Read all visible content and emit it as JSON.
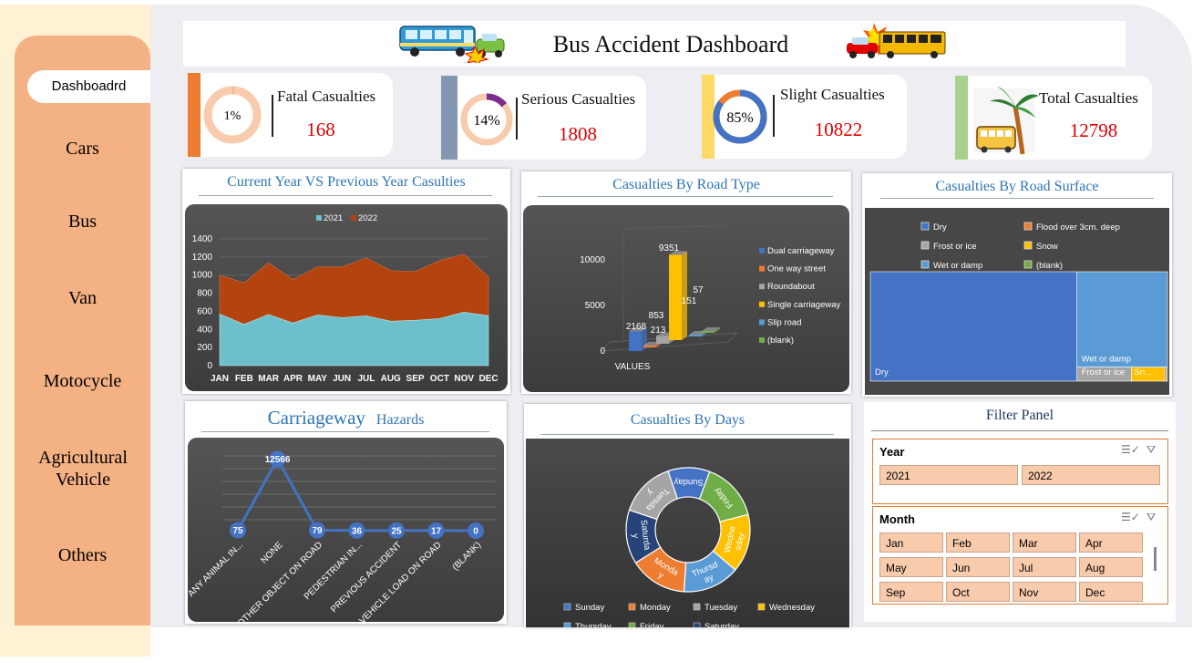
{
  "sidebar": {
    "active": "Dashboadrd",
    "items": [
      "Cars",
      "Bus",
      "Van",
      "Motocycle",
      "Agricultural Vehicle",
      "Others"
    ]
  },
  "title": "Bus Accident Dashboard",
  "kpis": [
    {
      "label": "Fatal Casualties",
      "value": "168",
      "percent": "1%",
      "strip_color": "#ed7d31",
      "ring_color": "#f4b183",
      "fraction": 0.01
    },
    {
      "label": "Serious Casualties",
      "value": "1808",
      "percent": "14%",
      "strip_color": "#8497b0",
      "ring_color": "#7b2c8e",
      "fraction": 0.14
    },
    {
      "label": "Slight Casualties",
      "value": "10822",
      "percent": "85%",
      "strip_color": "#ffd966",
      "ring_color": "#4472c4",
      "fraction": 0.85
    },
    {
      "label": "Total Casualties",
      "value": "12798",
      "strip_color": "#a9d18e"
    }
  ],
  "charts": {
    "year": {
      "title": "Current Year VS Previous Year Casulties"
    },
    "road_type": {
      "title": "Casualties By Road Type"
    },
    "surface": {
      "title": "Casualties By Road Surface"
    },
    "hazards": {
      "title": "Carriageway",
      "title2": "Hazards"
    },
    "days": {
      "title": "Casualties By Days"
    }
  },
  "chart_data": [
    {
      "type": "area",
      "title": "Current Year VS Previous Year Casulties",
      "categories": [
        "JAN",
        "FEB",
        "MAR",
        "APR",
        "MAY",
        "JUN",
        "JUL",
        "AUG",
        "SEP",
        "OCT",
        "NOV",
        "DEC"
      ],
      "series": [
        {
          "name": "2021",
          "values": [
            570,
            455,
            565,
            470,
            560,
            530,
            550,
            490,
            500,
            520,
            590,
            550
          ],
          "color": "#6dc0cb"
        },
        {
          "name": "2022",
          "values": [
            430,
            460,
            570,
            480,
            530,
            560,
            640,
            560,
            540,
            640,
            640,
            430
          ],
          "color": "#b4440f"
        }
      ],
      "stacked": true,
      "ylim": [
        0,
        1400
      ],
      "yticks": [
        0,
        200,
        400,
        600,
        800,
        1000,
        1200,
        1400
      ],
      "legend": "top",
      "grid": true
    },
    {
      "type": "bar",
      "title": "Casualties By Road Type",
      "categories": [
        "VALUES"
      ],
      "series": [
        {
          "name": "Dual carriageway",
          "value": 2168,
          "color": "#4472c4"
        },
        {
          "name": "One way street",
          "value": 213,
          "color": "#ed7d31"
        },
        {
          "name": "Roundabout",
          "value": 853,
          "color": "#a5a5a5"
        },
        {
          "name": "Single carriageway",
          "value": 9351,
          "color": "#ffc000"
        },
        {
          "name": "Slip road",
          "value": 151,
          "color": "#5b9bd5"
        },
        {
          "name": "(blank)",
          "value": 57,
          "color": "#70ad47"
        }
      ],
      "yticks": [
        0,
        5000,
        10000
      ],
      "ylim": [
        0,
        12000
      ],
      "legend": "right"
    },
    {
      "type": "treemap",
      "title": "Casualties By Road Surface",
      "series": [
        {
          "name": "Dry",
          "value": 8900,
          "color": "#4472c4"
        },
        {
          "name": "Wet or damp",
          "value": 3400,
          "color": "#5b9bd5"
        },
        {
          "name": "Frost or ice",
          "value": 300,
          "color": "#a5a5a5"
        },
        {
          "name": "Snow",
          "value": 180,
          "color": "#ffc000"
        },
        {
          "name": "Flood over 3cm. deep",
          "value": 10,
          "color": "#ed7d31"
        },
        {
          "name": "(blank)",
          "value": 8,
          "color": "#70ad47"
        }
      ],
      "labels": {
        "dry": "Dry",
        "wet": "Wet or damp",
        "frost": "Frost or ice",
        "snow": "Sn..."
      },
      "legend": "top"
    },
    {
      "type": "line",
      "title": "Carriageway  Hazards",
      "categories": [
        "ANY ANIMAL IN...",
        "NONE",
        "OTHER OBJECT ON ROAD",
        "PEDESTRIAN IN...",
        "PREVIOUS ACCIDENT",
        "VEHICLE LOAD ON ROAD",
        "(BLANK)"
      ],
      "values": [
        75,
        12566,
        79,
        36,
        25,
        17,
        0
      ],
      "ylim": [
        0,
        14000
      ]
    },
    {
      "type": "pie",
      "title": "Casualties By Days",
      "donut": true,
      "slices": [
        {
          "name": "Sunday",
          "label": "Sunday",
          "value": 1370,
          "color": "#4472c4"
        },
        {
          "name": "Friday",
          "label": "Friday",
          "value": 1930,
          "color": "#70ad47"
        },
        {
          "name": "Wednesday",
          "label": "Wedne sday",
          "value": 1900,
          "color": "#ffc000"
        },
        {
          "name": "Thursday",
          "label": "Thursd ay",
          "value": 1860,
          "color": "#5b9bd5"
        },
        {
          "name": "Monday",
          "label": "Monda y",
          "value": 1880,
          "color": "#ed7d31"
        },
        {
          "name": "Saturday",
          "label": "Saturda y",
          "value": 1770,
          "color": "#264478"
        },
        {
          "name": "Tuesday",
          "label": "Tuesda y",
          "value": 1830,
          "color": "#a5a5a5"
        }
      ],
      "legend_order": [
        "Sunday",
        "Monday",
        "Tuesday",
        "Wednesday",
        "Thursday",
        "Friday",
        "Saturday"
      ],
      "legend": "bottom"
    }
  ],
  "filter": {
    "title": "Filter Panel",
    "year_label": "Year",
    "years": [
      "2021",
      "2022"
    ],
    "month_label": "Month",
    "months": [
      "Jan",
      "Feb",
      "Mar",
      "Apr",
      "May",
      "Jun",
      "Jul",
      "Aug",
      "Sep",
      "Oct",
      "Nov",
      "Dec"
    ],
    "icons": [
      "multi-select-icon",
      "clear-filter-icon"
    ]
  }
}
